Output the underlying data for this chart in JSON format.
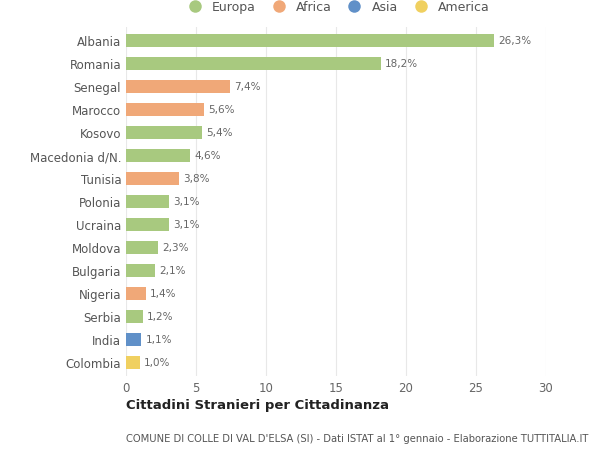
{
  "categories": [
    "Albania",
    "Romania",
    "Senegal",
    "Marocco",
    "Kosovo",
    "Macedonia d/N.",
    "Tunisia",
    "Polonia",
    "Ucraina",
    "Moldova",
    "Bulgaria",
    "Nigeria",
    "Serbia",
    "India",
    "Colombia"
  ],
  "values": [
    26.3,
    18.2,
    7.4,
    5.6,
    5.4,
    4.6,
    3.8,
    3.1,
    3.1,
    2.3,
    2.1,
    1.4,
    1.2,
    1.1,
    1.0
  ],
  "labels": [
    "26,3%",
    "18,2%",
    "7,4%",
    "5,6%",
    "5,4%",
    "4,6%",
    "3,8%",
    "3,1%",
    "3,1%",
    "2,3%",
    "2,1%",
    "1,4%",
    "1,2%",
    "1,1%",
    "1,0%"
  ],
  "continents": [
    "Europa",
    "Europa",
    "Africa",
    "Africa",
    "Europa",
    "Europa",
    "Africa",
    "Europa",
    "Europa",
    "Europa",
    "Europa",
    "Africa",
    "Europa",
    "Asia",
    "America"
  ],
  "continent_colors": {
    "Europa": "#a8c97f",
    "Africa": "#f0a878",
    "Asia": "#6090c8",
    "America": "#f0d060"
  },
  "legend_order": [
    "Europa",
    "Africa",
    "Asia",
    "America"
  ],
  "title": "Cittadini Stranieri per Cittadinanza",
  "subtitle": "COMUNE DI COLLE DI VAL D'ELSA (SI) - Dati ISTAT al 1° gennaio - Elaborazione TUTTITALIA.IT",
  "xlim": [
    0,
    30
  ],
  "xticks": [
    0,
    5,
    10,
    15,
    20,
    25,
    30
  ],
  "background_color": "#ffffff",
  "grid_color": "#e8e8e8",
  "bar_height": 0.55
}
